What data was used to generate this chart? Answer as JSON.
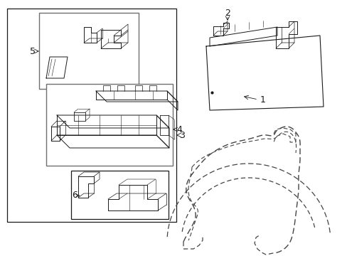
{
  "bg_color": "#ffffff",
  "line_color": "#1a1a1a",
  "gray_color": "#707070",
  "dash_color": "#444444",
  "fig_width": 4.89,
  "fig_height": 3.6,
  "dpi": 100
}
